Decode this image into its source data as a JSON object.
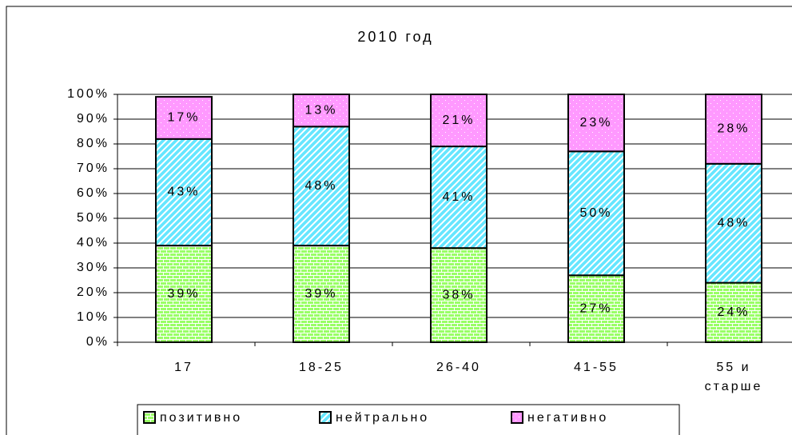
{
  "chart_data": {
    "type": "stacked_bar",
    "title": "2010 год",
    "categories": [
      "17",
      "18-25",
      "26-40",
      "41-55",
      "55 и старше"
    ],
    "series": [
      {
        "name": "позитивно",
        "color": "#99ff66",
        "values": [
          39,
          39,
          38,
          27,
          24
        ],
        "value_labels": [
          "39%",
          "39%",
          "38%",
          "27%",
          "24%"
        ]
      },
      {
        "name": "нейтрально",
        "color": "#66e6ff",
        "values": [
          43,
          48,
          41,
          50,
          48
        ],
        "value_labels": [
          "43%",
          "48%",
          "41%",
          "50%",
          "48%"
        ]
      },
      {
        "name": "негативно",
        "color": "#ff99ff",
        "values": [
          17,
          13,
          21,
          23,
          28
        ],
        "value_labels": [
          "17%",
          "13%",
          "21%",
          "23%",
          "28%"
        ]
      }
    ],
    "ylim": [
      0,
      100
    ],
    "yticks": [
      {
        "value": 0,
        "label": "0%"
      },
      {
        "value": 10,
        "label": "10%"
      },
      {
        "value": 20,
        "label": "20%"
      },
      {
        "value": 30,
        "label": "30%"
      },
      {
        "value": 40,
        "label": "40%"
      },
      {
        "value": 50,
        "label": "50%"
      },
      {
        "value": 60,
        "label": "60%"
      },
      {
        "value": 70,
        "label": "70%"
      },
      {
        "value": 80,
        "label": "80%"
      },
      {
        "value": 90,
        "label": "90%"
      },
      {
        "value": 100,
        "label": "100%"
      }
    ],
    "grid": true,
    "legend": "bottom"
  }
}
